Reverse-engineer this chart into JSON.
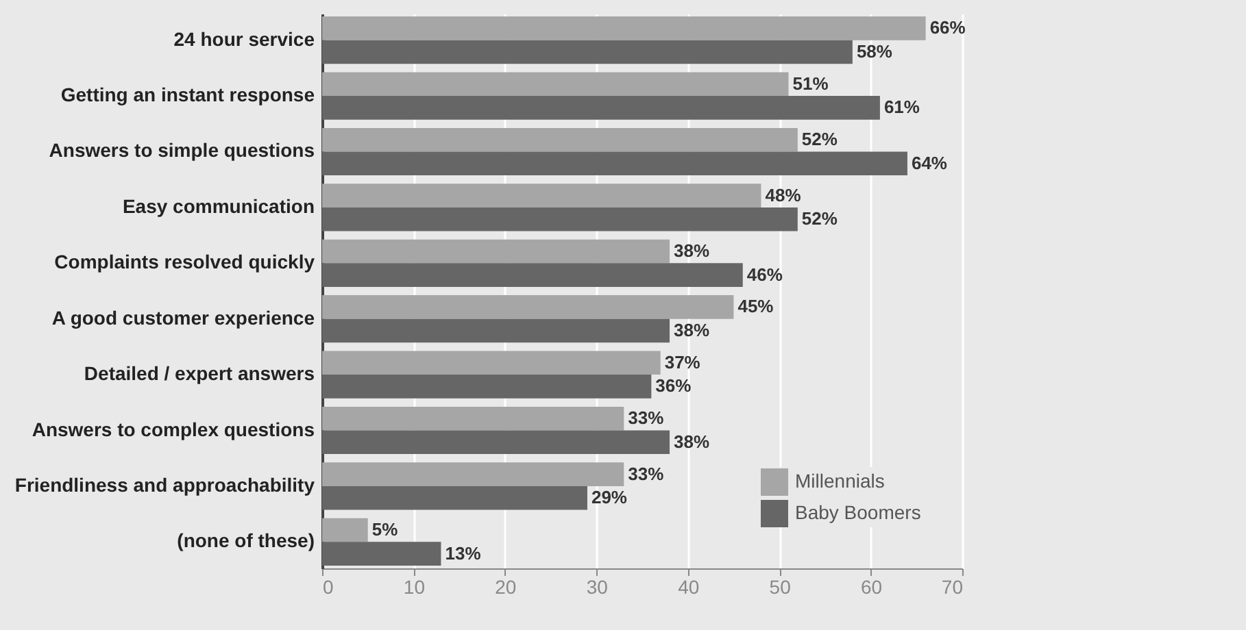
{
  "chart_data": {
    "type": "bar",
    "orientation": "horizontal",
    "categories": [
      "24 hour service",
      "Getting an instant response",
      "Answers to simple questions",
      "Easy communication",
      "Complaints resolved quickly",
      "A good customer experience",
      "Detailed / expert answers",
      "Answers to complex questions",
      "Friendliness and approachability",
      "(none of these)"
    ],
    "series": [
      {
        "name": "Millennials",
        "color": "#a6a6a6",
        "values": [
          66,
          51,
          52,
          48,
          38,
          45,
          37,
          33,
          33,
          5
        ],
        "value_labels": [
          "66%",
          "51%",
          "52%",
          "48%",
          "38%",
          "45%",
          "37%",
          "33%",
          "33%",
          "5%"
        ]
      },
      {
        "name": "Baby Boomers",
        "color": "#666666",
        "values": [
          58,
          61,
          64,
          52,
          46,
          38,
          36,
          38,
          29,
          13
        ],
        "value_labels": [
          "58%",
          "61%",
          "64%",
          "52%",
          "46%",
          "38%",
          "36%",
          "38%",
          "29%",
          "13%"
        ]
      }
    ],
    "xlim": [
      0,
      70
    ],
    "xticks": [
      0,
      10,
      20,
      30,
      40,
      50,
      60,
      70
    ],
    "grid": "x",
    "legend": "bottom right"
  }
}
